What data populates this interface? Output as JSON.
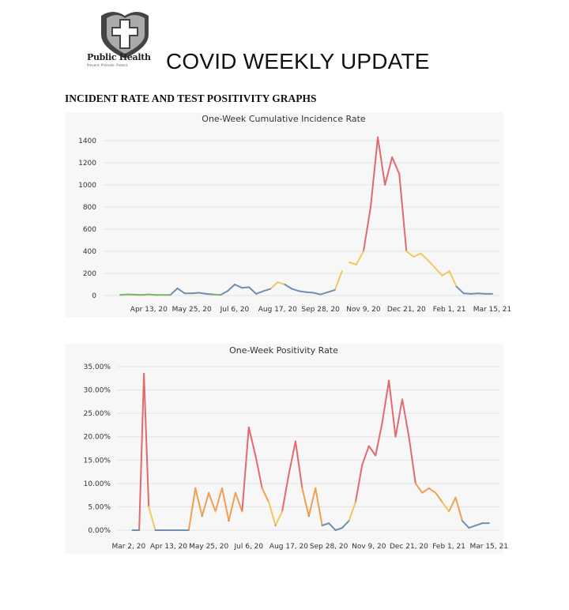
{
  "header": {
    "title": "COVID WEEKLY UPDATE",
    "logo_text": "Public Health",
    "logo_tagline": "Prevent. Promote. Protect."
  },
  "section_heading": "INCIDENT RATE AND TEST POSITIVITY GRAPHS",
  "colors": {
    "green": "#7bb66a",
    "blue": "#6f8fb0",
    "yellow": "#f2c75c",
    "orange": "#f0a050",
    "red": "#e06a6f"
  },
  "chart_data": [
    {
      "type": "line",
      "title": "One-Week Cumulative Incidence Rate",
      "xlabel": "",
      "ylabel": "",
      "ylim": [
        0,
        1400
      ],
      "yticks": [
        "0",
        "200",
        "400",
        "600",
        "800",
        "1000",
        "1200",
        "1400"
      ],
      "ytick_values": [
        0,
        200,
        400,
        600,
        800,
        1000,
        1200,
        1400
      ],
      "xticks": [
        "Apr 13, 20",
        "May 25, 20",
        "Jul 6, 20",
        "Aug 17, 20",
        "Sep 28, 20",
        "Nov 9, 20",
        "Dec 21, 20",
        "Feb 1, 21",
        "Mar 15, 21"
      ],
      "xtick_dates": [
        "2020-04-13",
        "2020-05-25",
        "2020-07-06",
        "2020-08-17",
        "2020-09-28",
        "2020-11-09",
        "2020-12-21",
        "2021-02-01",
        "2021-03-15"
      ],
      "xlim": [
        "2020-03-02",
        "2021-03-22"
      ],
      "grid": true,
      "x": [
        "2020-03-16",
        "2020-03-23",
        "2020-03-30",
        "2020-04-06",
        "2020-04-13",
        "2020-04-20",
        "2020-04-27",
        "2020-05-04",
        "2020-05-11",
        "2020-05-18",
        "2020-05-25",
        "2020-06-01",
        "2020-06-08",
        "2020-06-15",
        "2020-06-22",
        "2020-06-29",
        "2020-07-06",
        "2020-07-13",
        "2020-07-20",
        "2020-07-27",
        "2020-08-03",
        "2020-08-10",
        "2020-08-17",
        "2020-08-24",
        "2020-08-31",
        "2020-09-07",
        "2020-09-14",
        "2020-09-21",
        "2020-09-28",
        "2020-10-05",
        "2020-10-12",
        "2020-10-19",
        "2020-10-26",
        "2020-11-02",
        "2020-11-09",
        "2020-11-16",
        "2020-11-23",
        "2020-11-30",
        "2020-12-07",
        "2020-12-14",
        "2020-12-21",
        "2020-12-28",
        "2021-01-04",
        "2021-01-11",
        "2021-01-18",
        "2021-01-25",
        "2021-02-01",
        "2021-02-08",
        "2021-02-15",
        "2021-02-22",
        "2021-03-01",
        "2021-03-08",
        "2021-03-15"
      ],
      "values": [
        5,
        10,
        8,
        5,
        10,
        5,
        5,
        5,
        65,
        20,
        20,
        25,
        15,
        10,
        5,
        40,
        100,
        70,
        75,
        15,
        40,
        60,
        120,
        100,
        60,
        40,
        30,
        25,
        10,
        30,
        50,
        220,
        300,
        280,
        400,
        800,
        1430,
        1000,
        1250,
        1100,
        400,
        350,
        380,
        320,
        250,
        180,
        220,
        80,
        20,
        15,
        20,
        15,
        15
      ]
    },
    {
      "type": "line",
      "title": "One-Week Positivity Rate",
      "xlabel": "",
      "ylabel": "",
      "ylim": [
        0,
        35
      ],
      "yticks": [
        "0.00%",
        "5.00%",
        "10.00%",
        "15.00%",
        "20.00%",
        "25.00%",
        "30.00%",
        "35.00%"
      ],
      "ytick_values": [
        0,
        5,
        10,
        15,
        20,
        25,
        30,
        35
      ],
      "xticks": [
        "Mar 2, 20",
        "Apr 13, 20",
        "May 25, 20",
        "Jul 6, 20",
        "Aug 17, 20",
        "Sep 28, 20",
        "Nov 9, 20",
        "Dec 21, 20",
        "Feb 1, 21",
        "Mar 15, 21"
      ],
      "xtick_dates": [
        "2020-03-02",
        "2020-04-13",
        "2020-05-25",
        "2020-07-06",
        "2020-08-17",
        "2020-09-28",
        "2020-11-09",
        "2020-12-21",
        "2021-02-01",
        "2021-03-15"
      ],
      "xlim": [
        "2020-02-22",
        "2021-03-26"
      ],
      "grid": true,
      "x": [
        "2020-03-06",
        "2020-03-13",
        "2020-03-18",
        "2020-03-23",
        "2020-03-30",
        "2020-04-06",
        "2020-04-13",
        "2020-04-20",
        "2020-04-27",
        "2020-05-04",
        "2020-05-11",
        "2020-05-18",
        "2020-05-25",
        "2020-06-01",
        "2020-06-08",
        "2020-06-15",
        "2020-06-22",
        "2020-06-29",
        "2020-07-06",
        "2020-07-13",
        "2020-07-20",
        "2020-07-27",
        "2020-08-03",
        "2020-08-10",
        "2020-08-17",
        "2020-08-24",
        "2020-08-31",
        "2020-09-07",
        "2020-09-14",
        "2020-09-21",
        "2020-09-28",
        "2020-10-05",
        "2020-10-12",
        "2020-10-19",
        "2020-10-26",
        "2020-11-02",
        "2020-11-09",
        "2020-11-16",
        "2020-11-23",
        "2020-11-30",
        "2020-12-07",
        "2020-12-14",
        "2020-12-21",
        "2020-12-28",
        "2021-01-04",
        "2021-01-11",
        "2021-01-18",
        "2021-01-25",
        "2021-02-01",
        "2021-02-08",
        "2021-02-15",
        "2021-02-22",
        "2021-03-01",
        "2021-03-08",
        "2021-03-15"
      ],
      "values": [
        0,
        0,
        33.5,
        5,
        0,
        0,
        0,
        0,
        0,
        0,
        9,
        3,
        8,
        4,
        9,
        2,
        8,
        4,
        22,
        16,
        9,
        6,
        1,
        4,
        12,
        19,
        9,
        3,
        9,
        1,
        1.5,
        0,
        0.5,
        2,
        6,
        14,
        18,
        16,
        23,
        32,
        20,
        28,
        20,
        10,
        8,
        9,
        8,
        6,
        4,
        7,
        2,
        0.5,
        1,
        1.5,
        1.5
      ]
    }
  ]
}
